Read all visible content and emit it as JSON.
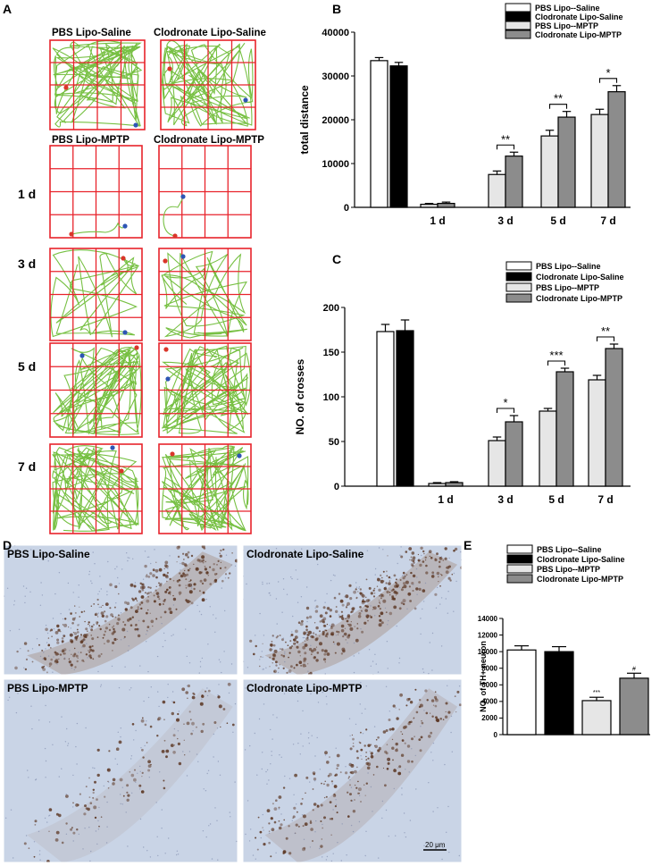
{
  "panel_letters": [
    "A",
    "B",
    "C",
    "D",
    "E"
  ],
  "panelA": {
    "headers_top": [
      "PBS Lipo-Saline",
      "Clodronate Lipo-Saline"
    ],
    "headers_mptp": [
      "PBS Lipo-MPTP",
      "Clodronate Lipo-MPTP"
    ],
    "days": [
      "1 d",
      "3 d",
      "5 d",
      "7 d"
    ]
  },
  "panelD": {
    "labels": [
      "PBS Lipo-Saline",
      "Clodronate Lipo-Saline",
      "PBS Lipo-MPTP",
      "Clodronate Lipo-MPTP"
    ],
    "scale_bar": "20 μm"
  },
  "colors": {
    "grid": "#e8232b",
    "track": "#77c043",
    "start": "#d9362a",
    "end": "#2e55b4",
    "tissue": "#c9d4e6",
    "stain": "#8a5a3c"
  },
  "chart_data": [
    {
      "id": "B",
      "type": "bar",
      "title": "",
      "xlabel": "",
      "ylabel": "total distance",
      "ylim": [
        0,
        40000
      ],
      "yticks": [
        "0",
        "10000",
        "20000",
        "30000",
        "40000"
      ],
      "legend": [
        "PBS Lipo--Saline",
        "Clodronate Lipo-Saline",
        "PBS Lipo--MPTP",
        "Clodronate Lipo-MPTP"
      ],
      "legend_position": "top-right",
      "bar_colors": [
        "#ffffff",
        "#000000",
        "#e6e6e6",
        "#8c8c8c"
      ],
      "baseline_bars": [
        {
          "series": "PBS Lipo--Saline",
          "value": 33500,
          "error": 700
        },
        {
          "series": "Clodronate Lipo-Saline",
          "value": 32300,
          "error": 800
        }
      ],
      "categories": [
        "1 d",
        "3 d",
        "5 d",
        "7 d"
      ],
      "series": [
        {
          "name": "PBS Lipo--MPTP",
          "values": [
            700,
            7500,
            16300,
            21200
          ],
          "errors": [
            200,
            800,
            1300,
            1200
          ]
        },
        {
          "name": "Clodronate Lipo-MPTP",
          "values": [
            900,
            11700,
            20600,
            26400
          ],
          "errors": [
            300,
            900,
            1300,
            1400
          ]
        }
      ],
      "significance": [
        "",
        "**",
        "**",
        "*"
      ]
    },
    {
      "id": "C",
      "type": "bar",
      "title": "",
      "xlabel": "",
      "ylabel": "NO. of  crosses",
      "ylim": [
        0,
        200
      ],
      "yticks": [
        "0",
        "50",
        "100",
        "150",
        "200"
      ],
      "legend": [
        "PBS Lipo--Saline",
        "Clodronate Lipo-Saline",
        "PBS Lipo--MPTP",
        "Clodronate Lipo-MPTP"
      ],
      "legend_position": "top-right",
      "bar_colors": [
        "#ffffff",
        "#000000",
        "#e6e6e6",
        "#8c8c8c"
      ],
      "baseline_bars": [
        {
          "series": "PBS Lipo--Saline",
          "value": 173,
          "error": 8
        },
        {
          "series": "Clodronate Lipo-Saline",
          "value": 174,
          "error": 12
        }
      ],
      "categories": [
        "1 d",
        "3 d",
        "5 d",
        "7 d"
      ],
      "series": [
        {
          "name": "PBS Lipo--MPTP",
          "values": [
            3,
            51,
            84,
            119
          ],
          "errors": [
            1,
            4,
            3,
            5
          ]
        },
        {
          "name": "Clodronate Lipo-MPTP",
          "values": [
            4,
            72,
            128,
            154
          ],
          "errors": [
            1,
            7,
            4,
            5
          ]
        }
      ],
      "significance": [
        "",
        "*",
        "***",
        "**"
      ]
    },
    {
      "id": "E",
      "type": "bar",
      "title": "",
      "xlabel": "",
      "ylabel": "NO. of TH+ neuron",
      "ylim": [
        0,
        14000
      ],
      "yticks": [
        "0",
        "2000",
        "4000",
        "6000",
        "8000",
        "10000",
        "12000",
        "14000"
      ],
      "legend": [
        "PBS Lipo--Saline",
        "Clodronate Lipo-Saline",
        "PBS Lipo--MPTP",
        "Clodronate Lipo-MPTP"
      ],
      "legend_position": "top",
      "bar_colors": [
        "#ffffff",
        "#000000",
        "#e6e6e6",
        "#8c8c8c"
      ],
      "values": [
        10200,
        10000,
        4100,
        6800
      ],
      "errors": [
        500,
        600,
        400,
        600
      ],
      "annotations": [
        "",
        "",
        "***",
        "#"
      ]
    }
  ]
}
